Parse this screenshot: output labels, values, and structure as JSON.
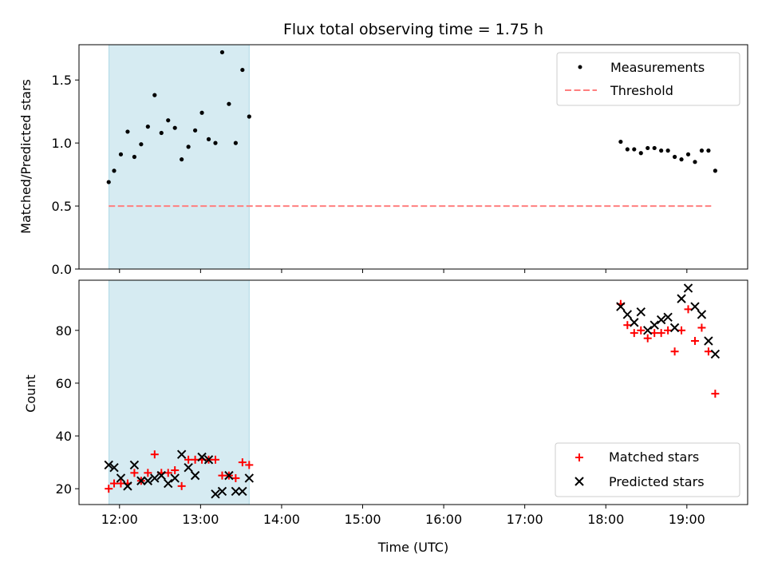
{
  "colors": {
    "measurement": "#000000",
    "threshold": "#ff7f7f",
    "matched": "#ff0000",
    "predicted": "#000000",
    "shade": "#add8e6"
  },
  "chart_data": [
    {
      "type": "scatter",
      "title": "Flux total observing time = 1.75 h",
      "xlabel": "",
      "ylabel": "Matched/Predicted stars",
      "ylim": [
        0,
        1.78
      ],
      "yticks": [
        "0.0",
        "0.5",
        "1.0",
        "1.5"
      ],
      "shaded_range_hours": [
        11.87,
        13.6
      ],
      "legend": {
        "placement": "top-right",
        "entries": [
          "Measurements",
          "Threshold"
        ]
      },
      "series": [
        {
          "name": "Measurements",
          "marker": "dot",
          "x": [
            "11:52",
            "11:56",
            "12:01",
            "12:06",
            "12:11",
            "12:16",
            "12:21",
            "12:26",
            "12:31",
            "12:36",
            "12:41",
            "12:46",
            "12:51",
            "12:56",
            "13:01",
            "13:06",
            "13:11",
            "13:16",
            "13:21",
            "13:26",
            "13:31",
            "13:36",
            "18:11",
            "18:16",
            "18:21",
            "18:26",
            "18:31",
            "18:36",
            "18:41",
            "18:46",
            "18:51",
            "18:56",
            "19:01",
            "19:06",
            "19:11",
            "19:16",
            "19:21"
          ],
          "y": [
            0.69,
            0.78,
            0.91,
            1.09,
            0.89,
            0.99,
            1.13,
            1.38,
            1.08,
            1.18,
            1.12,
            0.87,
            0.97,
            1.1,
            1.24,
            1.03,
            1.0,
            1.72,
            1.31,
            1.0,
            1.58,
            1.21,
            1.01,
            0.95,
            0.95,
            0.92,
            0.96,
            0.96,
            0.94,
            0.94,
            0.89,
            0.87,
            0.91,
            0.85,
            0.94,
            0.94,
            0.78
          ]
        },
        {
          "name": "Threshold",
          "style": "dashed",
          "x": [
            "11:52",
            "19:18"
          ],
          "y": [
            0.5,
            0.5
          ]
        }
      ]
    },
    {
      "type": "scatter",
      "title": "",
      "xlabel": "Time (UTC)",
      "ylabel": "Count",
      "ylim": [
        14,
        99
      ],
      "yticks": [
        "20",
        "40",
        "60",
        "80"
      ],
      "xticks": [
        "12:00",
        "13:00",
        "14:00",
        "15:00",
        "16:00",
        "17:00",
        "18:00",
        "19:00"
      ],
      "xlim": [
        "11:30",
        "19:45"
      ],
      "shaded_range_hours": [
        11.87,
        13.6
      ],
      "legend": {
        "placement": "bottom-right",
        "entries": [
          "Matched stars",
          "Predicted stars"
        ]
      },
      "series": [
        {
          "name": "Matched stars",
          "marker": "plus",
          "x": [
            "11:52",
            "11:56",
            "12:01",
            "12:06",
            "12:11",
            "12:16",
            "12:21",
            "12:26",
            "12:31",
            "12:36",
            "12:41",
            "12:46",
            "12:51",
            "12:56",
            "13:01",
            "13:06",
            "13:11",
            "13:16",
            "13:21",
            "13:26",
            "13:31",
            "13:36",
            "18:11",
            "18:16",
            "18:21",
            "18:26",
            "18:31",
            "18:36",
            "18:41",
            "18:46",
            "18:51",
            "18:56",
            "19:01",
            "19:06",
            "19:11",
            "19:16",
            "19:21"
          ],
          "y": [
            20,
            22,
            22,
            22,
            26,
            23,
            26,
            33,
            26,
            26,
            27,
            21,
            31,
            31,
            31,
            31,
            31,
            25,
            25,
            24,
            30,
            29,
            90,
            82,
            79,
            80,
            77,
            79,
            79,
            80,
            72,
            80,
            88,
            76,
            81,
            72,
            56
          ]
        },
        {
          "name": "Predicted stars",
          "marker": "x",
          "x": [
            "11:52",
            "11:56",
            "12:01",
            "12:06",
            "12:11",
            "12:16",
            "12:21",
            "12:26",
            "12:31",
            "12:36",
            "12:41",
            "12:46",
            "12:51",
            "12:56",
            "13:01",
            "13:06",
            "13:11",
            "13:16",
            "13:21",
            "13:26",
            "13:31",
            "13:36",
            "18:11",
            "18:16",
            "18:21",
            "18:26",
            "18:31",
            "18:36",
            "18:41",
            "18:46",
            "18:51",
            "18:56",
            "19:01",
            "19:06",
            "19:11",
            "19:16",
            "19:21"
          ],
          "y": [
            29,
            28,
            24,
            21,
            29,
            23,
            23,
            24,
            25,
            22,
            24,
            33,
            28,
            25,
            32,
            31,
            18,
            19,
            25,
            19,
            19,
            24,
            89,
            86,
            83,
            87,
            80,
            82,
            84,
            85,
            81,
            92,
            96,
            89,
            86,
            76,
            71
          ]
        }
      ]
    }
  ]
}
